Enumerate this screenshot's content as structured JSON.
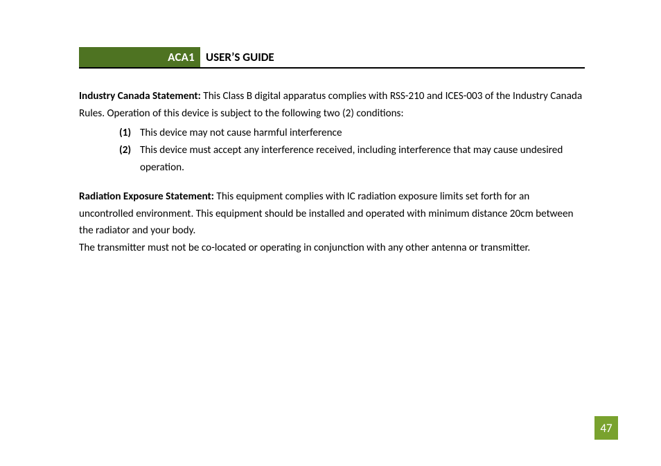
{
  "header": {
    "code": "ACA1",
    "title": "USER’S GUIDE"
  },
  "colors": {
    "header_green": "#4e7322",
    "page_badge": "#79a22e",
    "text": "#000000",
    "background": "#ffffff"
  },
  "content": {
    "p1_bold": "Industry Canada Statement:",
    "p1_rest": " This Class B digital apparatus complies with RSS-210 and ICES-003 of the Industry Canada Rules.  Operation of this device is subject to the following two (2) conditions:",
    "conditions": [
      {
        "marker": "(1)",
        "text": "This device may not cause harmful interference"
      },
      {
        "marker": "(2)",
        "text": "This device must accept any interference received, including interference that may cause undesired operation."
      }
    ],
    "p2_bold": "Radiation Exposure Statement:",
    "p2_rest": " This equipment complies with IC radiation exposure limits set forth for an uncontrolled environment.  This equipment should be installed and operated with minimum distance 20cm between the radiator and your body.",
    "p3": "The transmitter must not be co-located or operating in conjunction with any other antenna or transmitter."
  },
  "page_number": "47"
}
